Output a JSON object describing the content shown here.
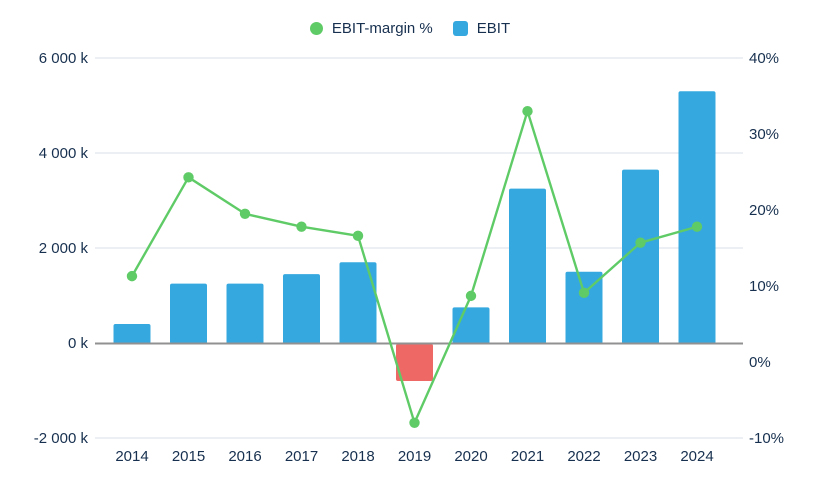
{
  "colors": {
    "text": "#17304F",
    "grid": "#E6ECF2",
    "zero_line": "#919191",
    "background": "#FFFFFF"
  },
  "chart_data": {
    "type": "combo",
    "title": "",
    "xlabel": "",
    "ylabel_left": "",
    "ylabel_right": "",
    "categories": [
      "2014",
      "2015",
      "2016",
      "2017",
      "2018",
      "2019",
      "2020",
      "2021",
      "2022",
      "2023",
      "2024"
    ],
    "series": [
      {
        "name": "EBIT-margin %",
        "type": "line",
        "axis": "right",
        "color": "#5FCB67",
        "marker": "circle",
        "values": [
          11.3,
          24.3,
          19.5,
          17.8,
          16.6,
          -8,
          8.7,
          33,
          9.1,
          15.7,
          17.8
        ]
      },
      {
        "name": "EBIT",
        "type": "bar",
        "axis": "left",
        "unit": "k",
        "color": "#35A8DF",
        "negative_color": "#EE6966",
        "marker": "square",
        "values": [
          400,
          1250,
          1250,
          1450,
          1700,
          -800,
          750,
          3250,
          1500,
          3650,
          5300
        ]
      }
    ],
    "left_axis": {
      "range": [
        -2000,
        6000
      ],
      "ticks": [
        {
          "value": 6000,
          "label": "6 000 k"
        },
        {
          "value": 4000,
          "label": "4 000 k"
        },
        {
          "value": 2000,
          "label": "2 000 k"
        },
        {
          "value": 0,
          "label": "0 k"
        },
        {
          "value": -2000,
          "label": "-2 000 k"
        }
      ]
    },
    "right_axis": {
      "range": [
        -10,
        40
      ],
      "ticks": [
        {
          "value": 40,
          "label": "40%"
        },
        {
          "value": 30,
          "label": "30%"
        },
        {
          "value": 20,
          "label": "20%"
        },
        {
          "value": 10,
          "label": "10%"
        },
        {
          "value": 0,
          "label": "0%"
        },
        {
          "value": -10,
          "label": "-10%"
        }
      ]
    },
    "grid": true,
    "legend_position": "top"
  }
}
